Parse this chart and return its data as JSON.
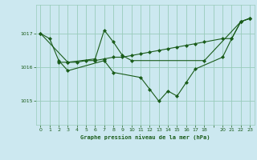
{
  "title": "Graphe pression niveau de la mer (hPa)",
  "bg_color": "#cce8f0",
  "grid_color": "#99ccbb",
  "line_color": "#1a5c1a",
  "marker_color": "#1a5c1a",
  "tick_label_color": "#1a5c1a",
  "xlabel_color": "#1a5c1a",
  "ylabel_ticks": [
    1015,
    1016,
    1017
  ],
  "xlim": [
    -0.5,
    23.5
  ],
  "ylim": [
    1014.3,
    1017.85
  ],
  "series1": {
    "x": [
      0,
      1,
      2,
      3,
      7,
      8,
      11,
      12,
      13,
      14,
      15,
      16,
      17,
      20,
      21,
      22,
      23
    ],
    "y": [
      1017.0,
      1016.85,
      1016.2,
      1015.9,
      1016.2,
      1015.85,
      1015.7,
      1015.35,
      1015.0,
      1015.3,
      1015.15,
      1015.55,
      1015.95,
      1016.3,
      1016.85,
      1017.35,
      1017.45
    ]
  },
  "series2": {
    "x": [
      0,
      3,
      6,
      7,
      8,
      9,
      10,
      18,
      22,
      23
    ],
    "y": [
      1017.0,
      1016.15,
      1016.25,
      1017.1,
      1016.75,
      1016.35,
      1016.2,
      1016.2,
      1017.35,
      1017.45
    ]
  },
  "series3": {
    "x": [
      2,
      3,
      4,
      5,
      6,
      7,
      8,
      9,
      10,
      11,
      12,
      13,
      14,
      15,
      16,
      17,
      18,
      20,
      21,
      22,
      23
    ],
    "y": [
      1016.15,
      1016.15,
      1016.15,
      1016.2,
      1016.2,
      1016.25,
      1016.3,
      1016.3,
      1016.35,
      1016.4,
      1016.45,
      1016.5,
      1016.55,
      1016.6,
      1016.65,
      1016.7,
      1016.75,
      1016.85,
      1016.85,
      1017.35,
      1017.45
    ]
  }
}
